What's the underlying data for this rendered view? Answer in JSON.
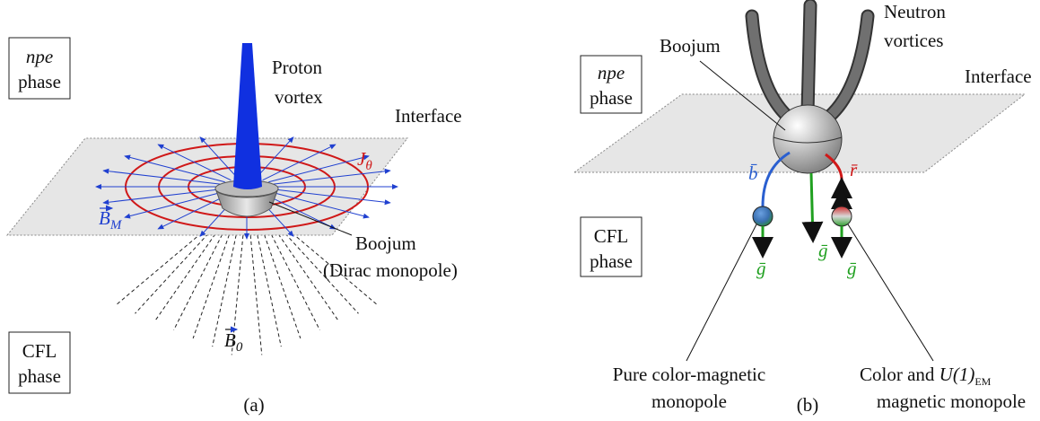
{
  "panel_a": {
    "caption": "(a)",
    "npe_box": [
      "npe",
      "phase"
    ],
    "cfl_box": [
      "CFL",
      "phase"
    ],
    "vortex_label": [
      "Proton",
      "vortex"
    ],
    "interface": "Interface",
    "current_label": "J",
    "current_sub": "θ",
    "field_label": "B",
    "field_sub": "M",
    "boojum_label": [
      "Boojum",
      "(Dirac monopole)"
    ],
    "bulk_field_label": "B",
    "bulk_field_sub": "0"
  },
  "panel_b": {
    "caption": "(b)",
    "vortex_label": [
      "Neutron",
      "vortices"
    ],
    "boojum_label": "Boojum",
    "npe_box": [
      "npe",
      "phase"
    ],
    "cfl_box": [
      "CFL",
      "phase"
    ],
    "interface": "Interface",
    "flux_labels": [
      "b̄",
      "r̄",
      "ḡ",
      "ḡ",
      "ḡ"
    ],
    "monopole_left": [
      "Pure color-magnetic",
      "monopole"
    ],
    "monopole_right": {
      "prefix": "Color and ",
      "symbol": "U(1)",
      "sub": "EM",
      "line2": "magnetic monopole"
    }
  }
}
